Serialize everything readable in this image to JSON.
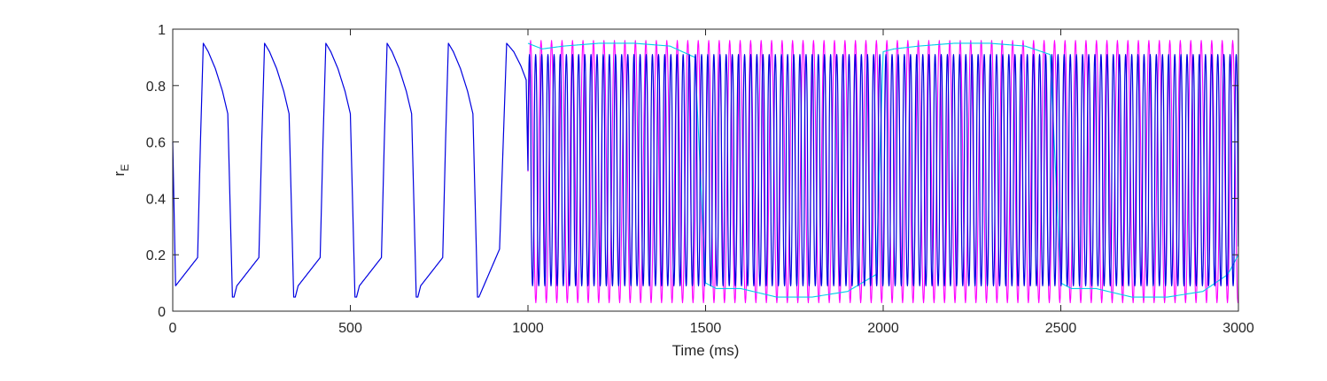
{
  "chart_data": {
    "type": "line",
    "title": "",
    "xlabel": "Time (ms)",
    "ylabel": {
      "main": "r",
      "subscript": "E"
    },
    "xlim": [
      0,
      3000
    ],
    "ylim": [
      0,
      1
    ],
    "xticks": [
      0,
      500,
      1000,
      1500,
      2000,
      2500,
      3000
    ],
    "yticks": [
      0,
      0.2,
      0.4,
      0.6,
      0.8,
      1
    ],
    "xtick_labels": [
      "0",
      "500",
      "1000",
      "1500",
      "2000",
      "2500",
      "3000"
    ],
    "ytick_labels": [
      "0",
      "0.2",
      "0.4",
      "0.6",
      "0.8",
      "1"
    ],
    "grid": false,
    "legend": "none",
    "series": [
      {
        "color": "#ff00ff",
        "start_time": 1000,
        "period_ms": 29.5,
        "min": 0.03,
        "max": 0.96
      },
      {
        "color": "#00d0e8",
        "start_time": 1000,
        "x": [
          1000,
          1040,
          1100,
          1200,
          1300,
          1400,
          1470,
          1500,
          1530,
          1600,
          1700,
          1800,
          1900,
          1980,
          2000,
          2030,
          2100,
          2200,
          2300,
          2400,
          2470,
          2500,
          2530,
          2600,
          2700,
          2800,
          2900,
          2970,
          3000
        ],
        "y": [
          0.95,
          0.93,
          0.94,
          0.95,
          0.95,
          0.94,
          0.9,
          0.1,
          0.08,
          0.08,
          0.05,
          0.05,
          0.07,
          0.13,
          0.92,
          0.93,
          0.94,
          0.95,
          0.95,
          0.94,
          0.91,
          0.1,
          0.08,
          0.08,
          0.05,
          0.05,
          0.07,
          0.13,
          0.2
        ]
      },
      {
        "color": "#0000e0",
        "slow_phase": {
          "x": [
            0,
            8,
            70,
            78,
            86,
            100,
            120,
            140,
            155,
            162,
            168
          ],
          "y": [
            0.6,
            0.09,
            0.19,
            0.6,
            0.95,
            0.92,
            0.86,
            0.78,
            0.7,
            0.35,
            0.05
          ],
          "period_ms": 172.5,
          "cycles": 5
        },
        "transition": {
          "x": [
            862,
            920,
            940,
            960,
            980,
            995
          ],
          "y": [
            0.05,
            0.22,
            0.95,
            0.92,
            0.87,
            0.82
          ]
        },
        "fast_phase": {
          "start_time": 1000,
          "period_ms": 17.3,
          "min": 0.09,
          "max": 0.91
        }
      }
    ]
  }
}
